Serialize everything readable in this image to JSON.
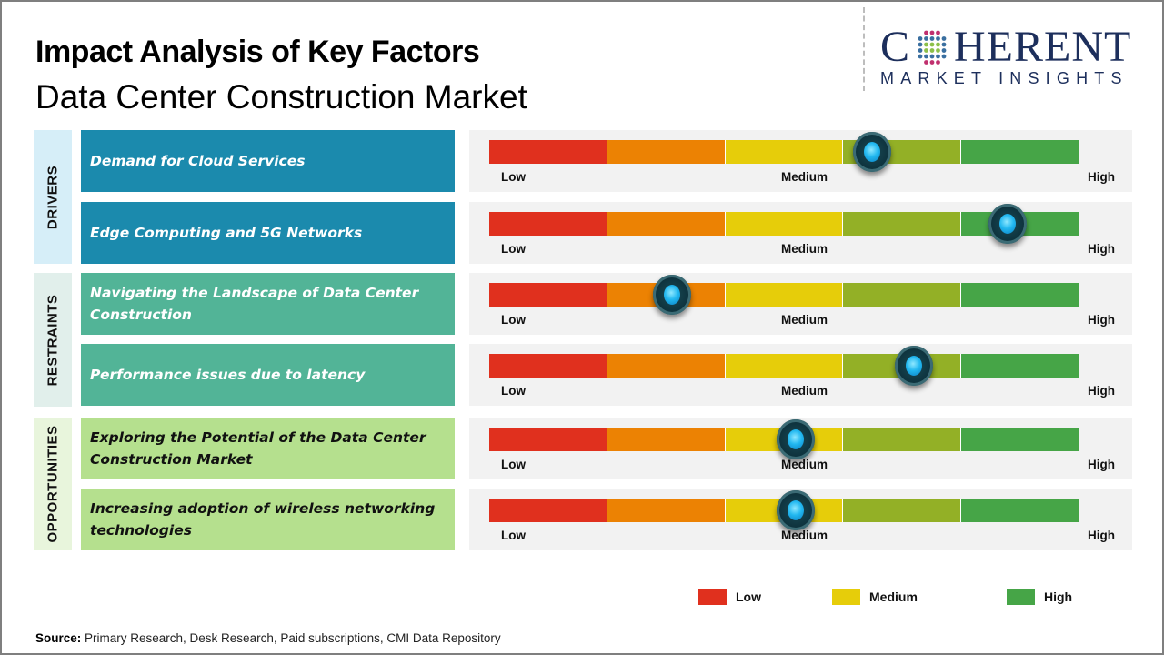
{
  "header": {
    "title": "Impact Analysis of Key Factors",
    "subtitle": "Data Center Construction Market"
  },
  "logo": {
    "main_left": "C",
    "main_right": "HERENT",
    "sub": "MARKET INSIGHTS",
    "globe_icon": "dotted-globe-icon"
  },
  "colors": {
    "drivers_bg": "#1b8aad",
    "drivers_label_bg": "#d6eef8",
    "restraints_bg": "#52b497",
    "restraints_label_bg": "#e1efeb",
    "opportunities_bg": "#b5e08e",
    "opportunities_label_bg": "#e8f5dc",
    "segments": [
      "#e0301e",
      "#ec8203",
      "#e6cd0a",
      "#93b026",
      "#46a547"
    ],
    "legend_low": "#e0301e",
    "legend_medium": "#e6cd0a",
    "legend_high": "#46a547"
  },
  "categories": [
    {
      "name": "DRIVERS"
    },
    {
      "name": "RESTRAINTS"
    },
    {
      "name": "OPPORTUNITIES"
    }
  ],
  "scale_labels": {
    "low": "Low",
    "medium": "Medium",
    "high": "High"
  },
  "chart_data": {
    "type": "table",
    "title": "Impact Analysis of Key Factors - Data Center Construction Market",
    "scale": [
      "Low",
      "Medium",
      "High"
    ],
    "scale_range": [
      0,
      1
    ],
    "factors": [
      {
        "category": "DRIVERS",
        "label": "Demand for Cloud Services",
        "impact": 0.65
      },
      {
        "category": "DRIVERS",
        "label": "Edge Computing and 5G Networks",
        "impact": 0.88
      },
      {
        "category": "RESTRAINTS",
        "label": "Navigating the Landscape of Data Center Construction",
        "impact": 0.31
      },
      {
        "category": "RESTRAINTS",
        "label": "Performance issues due to latency",
        "impact": 0.72
      },
      {
        "category": "OPPORTUNITIES",
        "label": "Exploring the Potential of the Data Center Construction Market",
        "impact": 0.52
      },
      {
        "category": "OPPORTUNITIES",
        "label": "Increasing adoption of wireless networking technologies",
        "impact": 0.52
      }
    ],
    "legend": [
      {
        "label": "Low",
        "color": "#e0301e"
      },
      {
        "label": "Medium",
        "color": "#e6cd0a"
      },
      {
        "label": "High",
        "color": "#46a547"
      }
    ],
    "legend_position": "bottom-right"
  },
  "footer": {
    "source_label": "Source:",
    "source_text": " Primary Research, Desk Research, Paid subscriptions, CMI Data Repository"
  }
}
